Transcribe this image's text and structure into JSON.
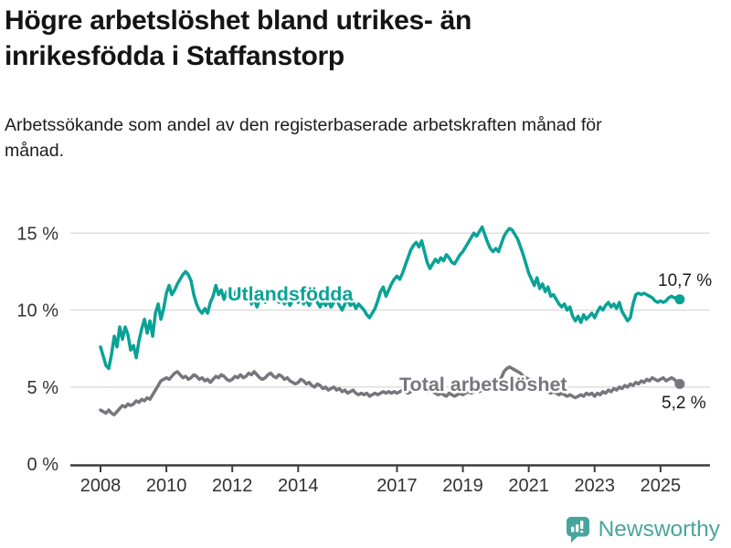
{
  "header": {
    "title": "Högre arbetslöshet bland utrikes- än inrikesfödda i Staffanstorp",
    "subtitle": "Arbetssökande som andel av den registerbaserade arbetskraften månad för månad."
  },
  "footer": {
    "brand": "Newsworthy",
    "brand_color": "#48a59e"
  },
  "chart_data": {
    "type": "line",
    "title": "Högre arbetslöshet bland utrikes- än inrikesfödda i Staffanstorp",
    "xlabel": "",
    "ylabel": "",
    "unit": "%",
    "grid": true,
    "legend_position": "inline-labels",
    "x_start": "2008-01",
    "x_end": "2025-08",
    "points_per_year": 12,
    "ylim": [
      0,
      16
    ],
    "yticks": [
      {
        "value": 0,
        "label": "0 %"
      },
      {
        "value": 5,
        "label": "5 %"
      },
      {
        "value": 10,
        "label": "10 %"
      },
      {
        "value": 15,
        "label": "15 %"
      }
    ],
    "xticks": [
      {
        "year": 2008,
        "label": "2008"
      },
      {
        "year": 2010,
        "label": "2010"
      },
      {
        "year": 2012,
        "label": "2012"
      },
      {
        "year": 2014,
        "label": "2014"
      },
      {
        "year": 2017,
        "label": "2017"
      },
      {
        "year": 2019,
        "label": "2019"
      },
      {
        "year": 2021,
        "label": "2021"
      },
      {
        "year": 2023,
        "label": "2023"
      },
      {
        "year": 2025,
        "label": "2025"
      }
    ],
    "series": [
      {
        "name": "Utlandsfödda",
        "color": "#0aa296",
        "end_value": 10.7,
        "end_label": "10,7 %",
        "label_x": 249,
        "label_y": 329,
        "end_label_x": 720,
        "end_label_y": 313,
        "values": [
          7.6,
          7.0,
          6.4,
          6.2,
          7.1,
          8.3,
          7.6,
          8.9,
          8.1,
          8.9,
          8.4,
          7.4,
          7.7,
          6.9,
          8.0,
          8.8,
          9.4,
          8.5,
          9.3,
          8.3,
          9.8,
          10.4,
          9.4,
          10.1,
          11.1,
          11.6,
          11.0,
          11.3,
          11.7,
          12.0,
          12.3,
          12.5,
          12.3,
          11.9,
          11.0,
          10.4,
          10.0,
          9.8,
          10.1,
          9.8,
          10.5,
          10.9,
          11.6,
          11.0,
          11.3,
          10.7,
          11.2,
          11.0,
          10.6,
          11.1,
          11.4,
          10.8,
          11.3,
          10.7,
          11.1,
          10.4,
          10.8,
          10.2,
          10.7,
          11.0,
          10.5,
          10.9,
          11.2,
          10.7,
          11.0,
          10.5,
          10.8,
          10.4,
          10.7,
          10.3,
          10.6,
          10.9,
          10.5,
          10.8,
          10.4,
          10.7,
          10.3,
          10.6,
          10.9,
          10.5,
          10.2,
          10.6,
          10.3,
          10.6,
          10.2,
          10.5,
          10.7,
          10.3,
          10.0,
          10.4,
          10.7,
          10.3,
          10.5,
          10.1,
          10.4,
          10.2,
          10.0,
          9.7,
          9.5,
          9.8,
          10.1,
          10.6,
          11.2,
          11.5,
          10.9,
          11.3,
          11.7,
          12.0,
          12.2,
          12.0,
          12.4,
          12.9,
          13.4,
          13.9,
          14.2,
          14.4,
          14.1,
          14.5,
          13.8,
          13.1,
          12.7,
          13.0,
          13.3,
          13.1,
          13.4,
          13.2,
          13.6,
          13.4,
          13.1,
          13.0,
          13.3,
          13.6,
          13.8,
          14.1,
          14.4,
          14.7,
          15.0,
          14.8,
          15.1,
          15.4,
          14.9,
          14.4,
          14.0,
          13.8,
          14.0,
          13.8,
          14.3,
          14.8,
          15.1,
          15.3,
          15.2,
          14.9,
          14.6,
          14.1,
          13.6,
          13.0,
          12.4,
          12.0,
          11.6,
          12.1,
          11.4,
          11.7,
          11.2,
          11.5,
          10.9,
          11.0,
          10.7,
          10.4,
          10.2,
          10.4,
          10.0,
          10.2,
          9.6,
          9.3,
          9.6,
          9.2,
          9.7,
          9.4,
          9.6,
          9.8,
          9.5,
          9.9,
          10.2,
          10.0,
          10.3,
          10.5,
          10.2,
          10.4,
          10.1,
          10.5,
          9.9,
          9.6,
          9.3,
          9.5,
          10.4,
          11.0,
          11.1,
          11.0,
          11.1,
          11.0,
          10.9,
          10.8,
          10.6,
          10.5,
          10.6,
          10.5,
          10.6,
          10.8,
          10.9,
          10.8,
          10.8,
          10.7
        ]
      },
      {
        "name": "Total arbetslöshet",
        "color": "#76767c",
        "end_value": 5.2,
        "end_label": "5,2 %",
        "label_x": 437,
        "label_y": 428,
        "end_label_x": 724,
        "end_label_y": 447,
        "values": [
          3.5,
          3.4,
          3.3,
          3.5,
          3.3,
          3.2,
          3.4,
          3.6,
          3.8,
          3.7,
          3.9,
          3.8,
          3.9,
          4.1,
          4.0,
          4.2,
          4.1,
          4.3,
          4.2,
          4.5,
          4.8,
          5.1,
          5.4,
          5.5,
          5.6,
          5.5,
          5.7,
          5.9,
          6.0,
          5.8,
          5.6,
          5.7,
          5.5,
          5.6,
          5.8,
          5.7,
          5.5,
          5.6,
          5.4,
          5.5,
          5.3,
          5.5,
          5.7,
          5.6,
          5.8,
          5.7,
          5.5,
          5.4,
          5.5,
          5.7,
          5.6,
          5.8,
          5.6,
          5.7,
          5.9,
          5.8,
          6.0,
          5.8,
          5.6,
          5.5,
          5.6,
          5.8,
          5.9,
          5.7,
          5.6,
          5.8,
          5.7,
          5.5,
          5.6,
          5.4,
          5.3,
          5.2,
          5.3,
          5.5,
          5.4,
          5.2,
          5.3,
          5.1,
          5.0,
          5.2,
          5.1,
          4.9,
          5.0,
          4.8,
          4.9,
          5.0,
          4.8,
          4.9,
          4.7,
          4.8,
          4.6,
          4.7,
          4.8,
          4.6,
          4.5,
          4.6,
          4.5,
          4.6,
          4.4,
          4.5,
          4.6,
          4.5,
          4.6,
          4.7,
          4.6,
          4.7,
          4.6,
          4.7,
          4.6,
          4.7,
          4.8,
          4.7,
          4.6,
          4.7,
          4.8,
          4.9,
          4.8,
          4.9,
          4.8,
          4.7,
          4.8,
          4.7,
          4.6,
          4.5,
          4.6,
          4.5,
          4.4,
          4.6,
          4.5,
          4.4,
          4.5,
          4.6,
          4.5,
          4.6,
          4.7,
          4.6,
          4.7,
          4.8,
          4.7,
          4.8,
          4.9,
          4.8,
          4.9,
          5.0,
          5.1,
          5.3,
          5.6,
          6.0,
          6.2,
          6.3,
          6.2,
          6.1,
          6.0,
          5.9,
          5.7,
          5.6,
          5.5,
          5.4,
          5.2,
          5.1,
          5.0,
          4.9,
          4.8,
          4.7,
          4.6,
          4.7,
          4.6,
          4.5,
          4.6,
          4.5,
          4.4,
          4.5,
          4.4,
          4.3,
          4.4,
          4.5,
          4.4,
          4.6,
          4.5,
          4.6,
          4.4,
          4.6,
          4.5,
          4.7,
          4.6,
          4.8,
          4.7,
          4.9,
          4.8,
          5.0,
          4.9,
          5.1,
          5.0,
          5.2,
          5.1,
          5.3,
          5.2,
          5.4,
          5.3,
          5.5,
          5.4,
          5.6,
          5.5,
          5.4,
          5.5,
          5.6,
          5.4,
          5.5,
          5.6,
          5.5,
          5.3,
          5.2
        ]
      }
    ]
  }
}
